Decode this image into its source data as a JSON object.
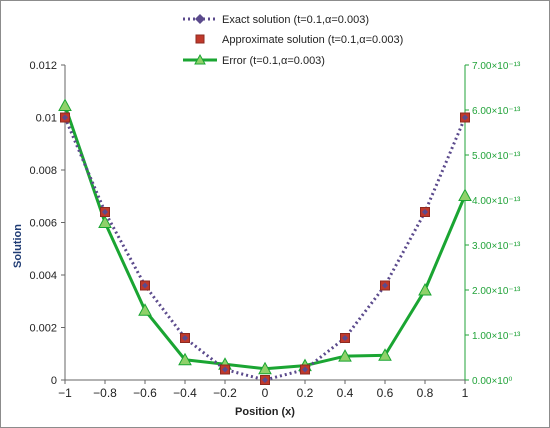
{
  "colors": {
    "exact": "#5b4a8c",
    "approx": "#c0392b",
    "error_line": "#1aa532",
    "error_marker": "#8fd16a",
    "ylabel": "#1f3b73",
    "right_axis": "#22a33a"
  },
  "chart_data": {
    "type": "line",
    "xlabel": "Position (x)",
    "ylabel": "Solution",
    "xlim": [
      -1,
      1
    ],
    "ylim": [
      0,
      0.012
    ],
    "y2lim": [
      0,
      7e-13
    ],
    "x_ticks": [
      "−1",
      "−0.8",
      "−0.6",
      "−0.4",
      "−0.2",
      "0",
      "0.2",
      "0.4",
      "0.6",
      "0.8",
      "1"
    ],
    "y_ticks": [
      "0",
      "0.002",
      "0.004",
      "0.006",
      "0.008",
      "0.01",
      "0.012"
    ],
    "y2_ticks": [
      "0.00×10⁰",
      "1.00×10⁻¹³",
      "2.00×10⁻¹³",
      "3.00×10⁻¹³",
      "4.00×10⁻¹³",
      "5.00×10⁻¹³",
      "6.00×10⁻¹³",
      "7.00×10⁻¹³"
    ],
    "x": [
      -1,
      -0.8,
      -0.6,
      -0.4,
      -0.2,
      0,
      0.2,
      0.4,
      0.6,
      0.8,
      1
    ],
    "series": [
      {
        "name": "Exact solution (t=0.1,α=0.003)",
        "axis": "left",
        "style": "dotted-diamond",
        "values": [
          0.01,
          0.0064,
          0.0036,
          0.0016,
          0.0004,
          0.0,
          0.0004,
          0.0016,
          0.0036,
          0.0064,
          0.01
        ]
      },
      {
        "name": "Approximate solution (t=0.1,α=0.003)",
        "axis": "left",
        "style": "square-marker",
        "values": [
          0.01,
          0.0064,
          0.0036,
          0.0016,
          0.0004,
          0.0,
          0.0004,
          0.0016,
          0.0036,
          0.0064,
          0.01
        ]
      },
      {
        "name": "Error (t=0.1,α=0.003)",
        "axis": "right",
        "style": "line-triangle",
        "values": [
          6.1e-13,
          3.5e-13,
          1.55e-13,
          4.5e-14,
          3.5e-14,
          2.5e-14,
          3.2e-14,
          5.3e-14,
          5.5e-14,
          2e-13,
          4.1e-13
        ]
      }
    ],
    "legend_position": "top",
    "grid": false
  }
}
